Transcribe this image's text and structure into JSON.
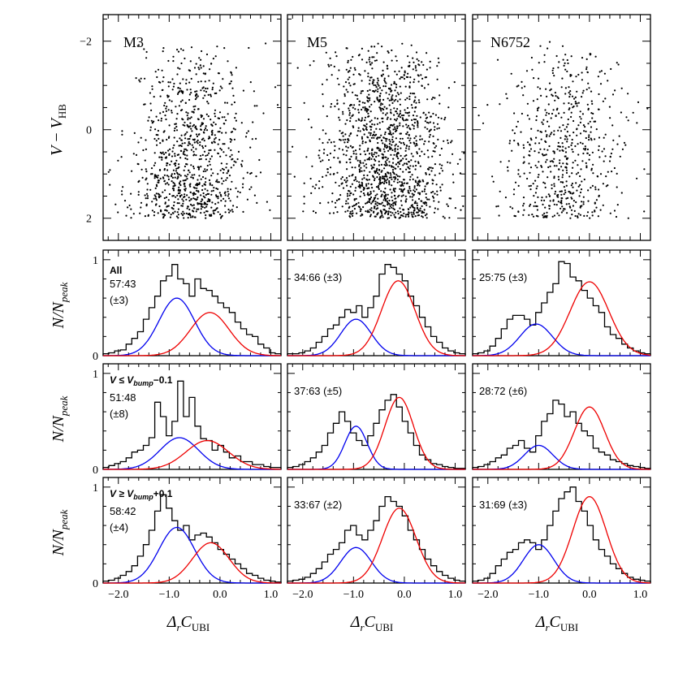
{
  "columns": [
    "M3",
    "M5",
    "N6752"
  ],
  "cmd_ylabel": {
    "main": "V",
    "dash": " − ",
    "v": "V",
    "sub": "HB"
  },
  "hist_ylabel": {
    "main": "N/N",
    "sub": "peak"
  },
  "xlabel": {
    "delta": "Δ",
    "r": "r",
    "c": "C",
    "sub": "UBI"
  },
  "row_labels": {
    "row1": "All",
    "row2": {
      "pre": "V ≤ V",
      "sub": "bump",
      "post": "−0.1"
    },
    "row3": {
      "pre": "V ≥ V",
      "sub": "bump",
      "post": "+0.1"
    }
  },
  "colors": {
    "blue": "#0000ee",
    "red": "#ee0000",
    "black": "#000000"
  },
  "chart_data": [
    {
      "type": "scatter",
      "row": "cmd",
      "xlim": [
        -2.3,
        1.2
      ],
      "ylim": [
        2.5,
        -2.6
      ],
      "yticks": [
        "−2",
        "0",
        "2"
      ],
      "ytick_values": [
        -2,
        0,
        2
      ],
      "note": "",
      "panels": [
        {
          "cluster": "M3",
          "n_points": 950,
          "x_center": -0.6,
          "x_sigma": 0.55
        },
        {
          "cluster": "M5",
          "n_points": 1400,
          "x_center": -0.4,
          "x_sigma": 0.6
        },
        {
          "cluster": "N6752",
          "n_points": 620,
          "x_center": -0.5,
          "x_sigma": 0.6
        }
      ]
    },
    {
      "type": "line",
      "row": "hist",
      "xlim": [
        -2.3,
        1.2
      ],
      "xticks": [
        "−2.0",
        "−1.0",
        "0.0",
        "1.0"
      ],
      "xtick_values": [
        -2,
        -1,
        0,
        1
      ],
      "yticks": [
        "0",
        "1"
      ],
      "ytick_values": [
        0,
        1
      ],
      "panels": [
        {
          "row": 1,
          "cluster": "M3",
          "ratio": "57:43",
          "err": "(±3)",
          "blue": {
            "mu": -0.85,
            "sigma": 0.35,
            "amp": 0.6
          },
          "red": {
            "mu": -0.2,
            "sigma": 0.38,
            "amp": 0.45
          },
          "hist_y": [
            0.02,
            0.03,
            0.05,
            0.06,
            0.12,
            0.18,
            0.25,
            0.38,
            0.5,
            0.62,
            0.78,
            0.83,
            0.95,
            0.8,
            0.75,
            0.62,
            0.8,
            0.7,
            0.68,
            0.62,
            0.55,
            0.5,
            0.45,
            0.35,
            0.28,
            0.22,
            0.2,
            0.12,
            0.08,
            0.03,
            0.02
          ]
        },
        {
          "row": 1,
          "cluster": "M5",
          "ratio": "34:66",
          "err": "(±3)",
          "blue": {
            "mu": -0.95,
            "sigma": 0.3,
            "amp": 0.38
          },
          "red": {
            "mu": -0.12,
            "sigma": 0.33,
            "amp": 0.78
          },
          "hist_y": [
            0.02,
            0.02,
            0.03,
            0.05,
            0.08,
            0.14,
            0.2,
            0.28,
            0.32,
            0.4,
            0.48,
            0.45,
            0.52,
            0.4,
            0.5,
            0.62,
            0.85,
            0.95,
            0.92,
            0.85,
            0.78,
            0.62,
            0.52,
            0.4,
            0.3,
            0.2,
            0.14,
            0.08,
            0.05,
            0.03,
            0.02
          ]
        },
        {
          "row": 1,
          "cluster": "N6752",
          "ratio": "25:75",
          "err": "(±3)",
          "blue": {
            "mu": -1.05,
            "sigma": 0.32,
            "amp": 0.33
          },
          "red": {
            "mu": 0.0,
            "sigma": 0.38,
            "amp": 0.77
          },
          "hist_y": [
            0.02,
            0.03,
            0.05,
            0.1,
            0.18,
            0.28,
            0.38,
            0.42,
            0.42,
            0.38,
            0.32,
            0.45,
            0.55,
            0.66,
            0.75,
            0.98,
            0.96,
            0.82,
            0.78,
            0.68,
            0.6,
            0.52,
            0.45,
            0.3,
            0.22,
            0.18,
            0.12,
            0.08,
            0.05,
            0.03,
            0.02
          ]
        },
        {
          "row": 2,
          "cluster": "M3",
          "ratio": "51:48",
          "err": "(±8)",
          "blue": {
            "mu": -0.8,
            "sigma": 0.38,
            "amp": 0.33
          },
          "red": {
            "mu": -0.25,
            "sigma": 0.42,
            "amp": 0.3
          },
          "hist_y": [
            0.02,
            0.04,
            0.06,
            0.08,
            0.12,
            0.18,
            0.2,
            0.25,
            0.33,
            0.7,
            0.55,
            0.35,
            0.5,
            0.92,
            0.55,
            0.75,
            0.45,
            0.32,
            0.3,
            0.2,
            0.25,
            0.18,
            0.12,
            0.14,
            0.08,
            0.08,
            0.05,
            0.05,
            0.03,
            0.02,
            0.02
          ]
        },
        {
          "row": 2,
          "cluster": "M5",
          "ratio": "37:63",
          "err": "(±5)",
          "blue": {
            "mu": -0.95,
            "sigma": 0.22,
            "amp": 0.45
          },
          "red": {
            "mu": -0.1,
            "sigma": 0.28,
            "amp": 0.75
          },
          "hist_y": [
            0.02,
            0.03,
            0.05,
            0.08,
            0.12,
            0.18,
            0.25,
            0.38,
            0.48,
            0.6,
            0.5,
            0.38,
            0.3,
            0.25,
            0.35,
            0.48,
            0.62,
            0.72,
            0.78,
            0.65,
            0.5,
            0.38,
            0.25,
            0.15,
            0.1,
            0.06,
            0.05,
            0.03,
            0.02,
            0.01,
            0.01
          ]
        },
        {
          "row": 2,
          "cluster": "N6752",
          "ratio": "28:72",
          "err": "(±6)",
          "blue": {
            "mu": -1.0,
            "sigma": 0.28,
            "amp": 0.25
          },
          "red": {
            "mu": 0.0,
            "sigma": 0.3,
            "amp": 0.65
          },
          "hist_y": [
            0.02,
            0.03,
            0.05,
            0.08,
            0.12,
            0.15,
            0.22,
            0.25,
            0.3,
            0.22,
            0.18,
            0.35,
            0.5,
            0.58,
            0.72,
            0.68,
            0.55,
            0.6,
            0.48,
            0.4,
            0.35,
            0.22,
            0.18,
            0.15,
            0.1,
            0.08,
            0.06,
            0.04,
            0.03,
            0.02,
            0.01
          ]
        },
        {
          "row": 3,
          "cluster": "M3",
          "ratio": "58:42",
          "err": "(±4)",
          "blue": {
            "mu": -0.85,
            "sigma": 0.35,
            "amp": 0.58
          },
          "red": {
            "mu": -0.18,
            "sigma": 0.36,
            "amp": 0.42
          },
          "hist_y": [
            0.02,
            0.03,
            0.05,
            0.08,
            0.12,
            0.18,
            0.28,
            0.4,
            0.55,
            0.75,
            0.92,
            0.78,
            0.65,
            0.55,
            0.6,
            0.45,
            0.5,
            0.52,
            0.48,
            0.42,
            0.35,
            0.3,
            0.25,
            0.2,
            0.15,
            0.1,
            0.08,
            0.05,
            0.03,
            0.02,
            0.01
          ]
        },
        {
          "row": 3,
          "cluster": "M5",
          "ratio": "33:67",
          "err": "(±2)",
          "blue": {
            "mu": -0.95,
            "sigma": 0.3,
            "amp": 0.37
          },
          "red": {
            "mu": -0.1,
            "sigma": 0.33,
            "amp": 0.78
          },
          "hist_y": [
            0.02,
            0.03,
            0.04,
            0.06,
            0.1,
            0.15,
            0.22,
            0.3,
            0.35,
            0.42,
            0.55,
            0.6,
            0.5,
            0.45,
            0.55,
            0.65,
            0.8,
            0.9,
            0.85,
            0.8,
            0.7,
            0.55,
            0.45,
            0.35,
            0.25,
            0.18,
            0.12,
            0.08,
            0.05,
            0.03,
            0.02
          ]
        },
        {
          "row": 3,
          "cluster": "N6752",
          "ratio": "31:69",
          "err": "(±3)",
          "blue": {
            "mu": -1.0,
            "sigma": 0.3,
            "amp": 0.4
          },
          "red": {
            "mu": 0.0,
            "sigma": 0.33,
            "amp": 0.9
          },
          "hist_y": [
            0.02,
            0.03,
            0.05,
            0.1,
            0.18,
            0.25,
            0.32,
            0.35,
            0.42,
            0.45,
            0.42,
            0.35,
            0.45,
            0.6,
            0.75,
            0.88,
            0.95,
            1.0,
            0.85,
            0.75,
            0.6,
            0.45,
            0.35,
            0.28,
            0.2,
            0.15,
            0.1,
            0.06,
            0.04,
            0.03,
            0.02
          ]
        }
      ]
    }
  ]
}
